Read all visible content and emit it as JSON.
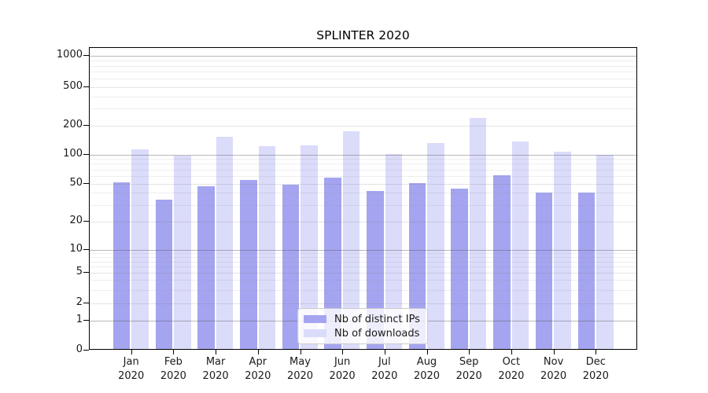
{
  "chart_data": {
    "type": "bar",
    "title": "SPLINTER 2020",
    "categories": [
      "Jan",
      "Feb",
      "Mar",
      "Apr",
      "May",
      "Jun",
      "Jul",
      "Aug",
      "Sep",
      "Oct",
      "Nov",
      "Dec"
    ],
    "category_year": "2020",
    "series": [
      {
        "name": "Nb of distinct IPs",
        "color": "#a4a4f0",
        "values": [
          50,
          33,
          45,
          52,
          47,
          55,
          40,
          49,
          43,
          59,
          39,
          39
        ]
      },
      {
        "name": "Nb of downloads",
        "color": "#dbdbfa",
        "values": [
          110,
          94,
          148,
          117,
          120,
          170,
          97,
          127,
          232,
          133,
          102,
          95
        ]
      }
    ],
    "y_axis": {
      "ticks": [
        0,
        1,
        2,
        5,
        10,
        20,
        50,
        100,
        200,
        500,
        1000
      ],
      "scale": "logarithmic-with-zero"
    },
    "xlabel": "",
    "ylabel": "",
    "legend_position": "lower-center",
    "grid": true
  }
}
